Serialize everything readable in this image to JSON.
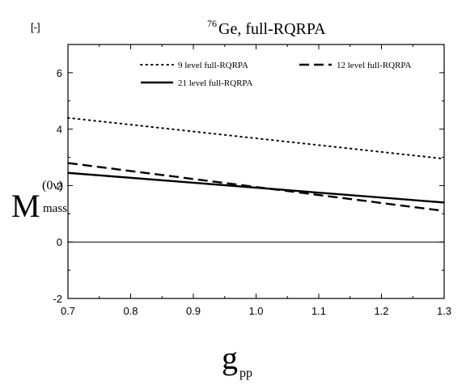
{
  "chart_data": {
    "type": "line",
    "title_sup": "76",
    "title": "Ge, full-RQRPA",
    "units_label": "[-]",
    "ylabel_main": "M",
    "ylabel_sup": "(0ν)",
    "ylabel_sub": "mass",
    "xlabel_main": "g",
    "xlabel_sub": "pp",
    "xlim": [
      0.7,
      1.3
    ],
    "ylim": [
      -2,
      7
    ],
    "xticks": [
      "0.7",
      "0.8",
      "0.9",
      "1.0",
      "1.1",
      "1.2",
      "1.3"
    ],
    "yticks": [
      "-2",
      "0",
      "2",
      "4",
      "6"
    ],
    "zero_line": true,
    "grid": false,
    "legend_position": "top",
    "series": [
      {
        "name": "9 level full-RQRPA",
        "style": "dotted",
        "x": [
          0.7,
          1.3
        ],
        "y": [
          4.4,
          2.95
        ]
      },
      {
        "name": "12 level full-RQRPA",
        "style": "dashed",
        "x": [
          0.7,
          1.3
        ],
        "y": [
          2.8,
          1.1
        ]
      },
      {
        "name": "21 level full-RQRPA",
        "style": "solid",
        "x": [
          0.7,
          1.3
        ],
        "y": [
          2.45,
          1.4
        ]
      }
    ]
  }
}
